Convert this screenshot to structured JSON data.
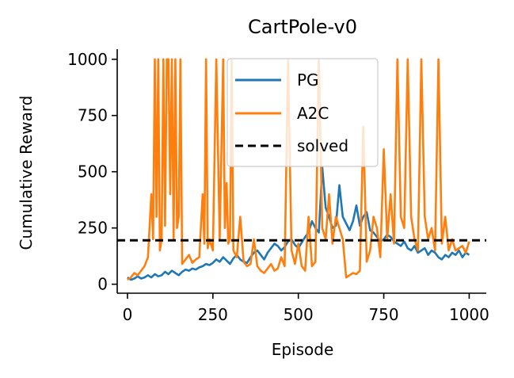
{
  "chart_data": {
    "type": "line",
    "title": "CartPole-v0",
    "xlabel": "Episode",
    "ylabel": "Cumulative Reward",
    "xlim": [
      -30,
      1050
    ],
    "ylim": [
      -40,
      1045
    ],
    "xticks": [
      0,
      250,
      500,
      750,
      1000
    ],
    "yticks": [
      0,
      250,
      500,
      750,
      1000
    ],
    "grid": false,
    "legend_position": "top-center",
    "series": [
      {
        "name": "PG",
        "color": "#1f77b4",
        "x": [
          0,
          10,
          20,
          30,
          40,
          50,
          60,
          70,
          80,
          90,
          100,
          110,
          120,
          130,
          140,
          150,
          160,
          170,
          180,
          190,
          200,
          210,
          220,
          230,
          240,
          250,
          260,
          270,
          280,
          290,
          300,
          310,
          320,
          330,
          340,
          350,
          360,
          370,
          380,
          390,
          400,
          410,
          420,
          430,
          440,
          450,
          460,
          470,
          480,
          490,
          500,
          510,
          520,
          530,
          540,
          550,
          560,
          570,
          580,
          590,
          600,
          610,
          620,
          630,
          640,
          650,
          660,
          670,
          680,
          690,
          700,
          710,
          720,
          730,
          740,
          750,
          760,
          770,
          780,
          790,
          800,
          810,
          820,
          830,
          840,
          850,
          860,
          870,
          880,
          890,
          900,
          910,
          920,
          930,
          940,
          950,
          960,
          970,
          980,
          990,
          1000
        ],
        "y": [
          30,
          20,
          25,
          35,
          25,
          30,
          40,
          30,
          45,
          35,
          40,
          55,
          45,
          60,
          50,
          40,
          55,
          65,
          60,
          70,
          65,
          75,
          80,
          90,
          85,
          95,
          110,
          100,
          120,
          105,
          90,
          115,
          130,
          110,
          100,
          95,
          120,
          140,
          150,
          130,
          110,
          140,
          160,
          180,
          170,
          150,
          165,
          190,
          200,
          175,
          160,
          185,
          210,
          230,
          280,
          250,
          230,
          520,
          340,
          300,
          250,
          260,
          440,
          300,
          270,
          240,
          280,
          350,
          260,
          300,
          320,
          240,
          230,
          210,
          190,
          200,
          220,
          210,
          190,
          180,
          170,
          190,
          160,
          150,
          170,
          140,
          150,
          160,
          130,
          150,
          140,
          120,
          110,
          130,
          120,
          140,
          130,
          150,
          120,
          140,
          130
        ]
      },
      {
        "name": "A2C",
        "color": "#ff7f0e",
        "x": [
          0,
          10,
          20,
          30,
          40,
          50,
          60,
          70,
          75,
          80,
          85,
          90,
          95,
          100,
          105,
          110,
          115,
          120,
          125,
          130,
          135,
          140,
          145,
          150,
          155,
          160,
          170,
          180,
          190,
          200,
          210,
          220,
          225,
          230,
          235,
          240,
          250,
          260,
          270,
          280,
          285,
          290,
          295,
          300,
          305,
          310,
          320,
          330,
          340,
          350,
          360,
          370,
          380,
          390,
          400,
          410,
          420,
          430,
          440,
          450,
          460,
          470,
          480,
          490,
          500,
          510,
          520,
          530,
          540,
          550,
          560,
          570,
          580,
          590,
          600,
          610,
          620,
          630,
          640,
          650,
          660,
          670,
          680,
          690,
          700,
          710,
          720,
          730,
          740,
          750,
          760,
          770,
          780,
          790,
          800,
          810,
          820,
          830,
          840,
          850,
          860,
          870,
          880,
          890,
          900,
          910,
          920,
          930,
          940,
          950,
          960,
          970,
          980,
          990,
          1000
        ],
        "y": [
          20,
          30,
          50,
          40,
          60,
          80,
          120,
          400,
          200,
          1000,
          300,
          1000,
          150,
          200,
          1000,
          260,
          1000,
          1000,
          400,
          1000,
          200,
          1000,
          250,
          300,
          1000,
          90,
          110,
          130,
          95,
          110,
          120,
          400,
          180,
          1000,
          160,
          200,
          150,
          1000,
          200,
          1000,
          250,
          450,
          180,
          200,
          1000,
          150,
          120,
          300,
          100,
          80,
          90,
          200,
          80,
          60,
          50,
          70,
          90,
          60,
          70,
          120,
          80,
          1000,
          150,
          90,
          180,
          80,
          60,
          300,
          80,
          100,
          1000,
          250,
          200,
          400,
          180,
          300,
          250,
          200,
          30,
          40,
          50,
          45,
          60,
          700,
          100,
          150,
          300,
          250,
          120,
          600,
          200,
          400,
          180,
          1000,
          300,
          250,
          1000,
          300,
          200,
          150,
          1000,
          300,
          200,
          250,
          150,
          1000,
          180,
          300,
          150,
          200,
          150,
          160,
          170,
          140,
          190
        ]
      },
      {
        "name": "solved",
        "color": "#000000",
        "style": "dashed",
        "x": [
          -30,
          1050
        ],
        "y": [
          195,
          195
        ]
      }
    ]
  }
}
